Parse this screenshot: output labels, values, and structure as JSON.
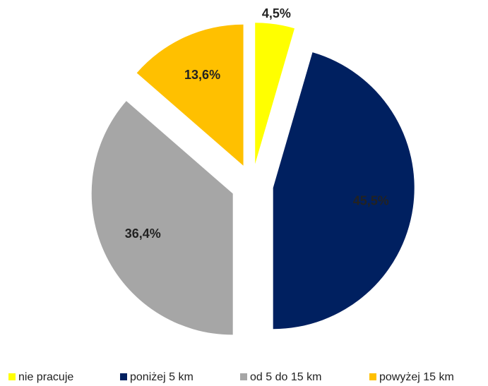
{
  "chart_data": {
    "type": "pie",
    "categories": [
      "nie pracuje",
      "poniżej 5 km",
      "od 5 do 15 km",
      "powyżej 15 km"
    ],
    "values": [
      4.5,
      45.5,
      36.4,
      13.6
    ],
    "value_labels": [
      "4,5%",
      "45,5%",
      "36,4%",
      "13,6%"
    ],
    "colors": [
      "#ffff00",
      "#002060",
      "#a6a6a6",
      "#ffc000"
    ],
    "legend": "bottom"
  }
}
